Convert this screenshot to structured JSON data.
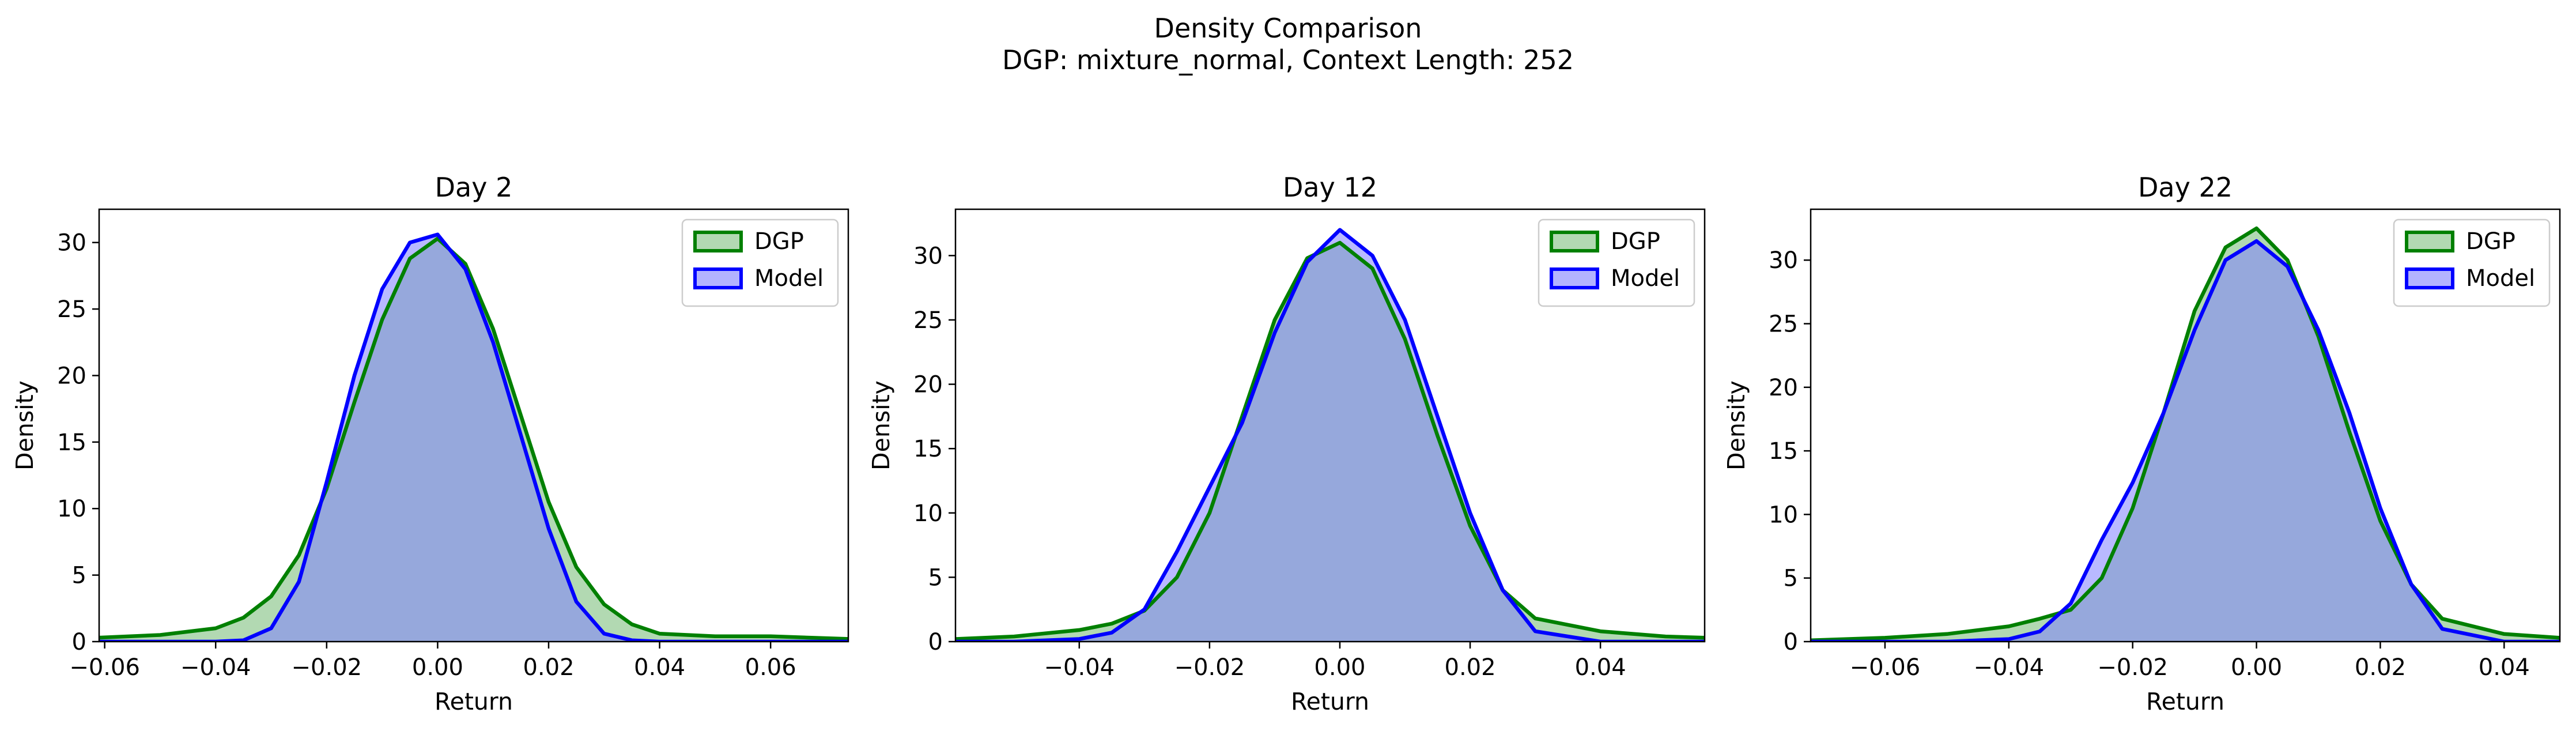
{
  "figure": {
    "title": "Density Comparison",
    "subtitle": "DGP: mixture_normal, Context Length: 252"
  },
  "colors": {
    "dgp_line": "#008000",
    "dgp_fill": "#7fbf7f",
    "model_line": "#0000ff",
    "model_fill": "#8080ff",
    "overlap_fill": "#7f97c7"
  },
  "chart_data": [
    {
      "type": "area",
      "title": "Day 2",
      "xlabel": "Return",
      "ylabel": "Density",
      "xlim": [
        -0.061,
        0.074
      ],
      "ylim": [
        0,
        32.5
      ],
      "xticks": [
        -0.06,
        -0.04,
        -0.02,
        0.0,
        0.02,
        0.04,
        0.06
      ],
      "xtick_labels": [
        "−0.06",
        "−0.04",
        "−0.02",
        "0.00",
        "0.02",
        "0.04",
        "0.06"
      ],
      "yticks": [
        0,
        5,
        10,
        15,
        20,
        25,
        30
      ],
      "ytick_labels": [
        "0",
        "5",
        "10",
        "15",
        "20",
        "25",
        "30"
      ],
      "legend": "top-right",
      "x": [
        -0.061,
        -0.05,
        -0.04,
        -0.035,
        -0.03,
        -0.025,
        -0.02,
        -0.015,
        -0.01,
        -0.005,
        0.0,
        0.005,
        0.01,
        0.015,
        0.02,
        0.025,
        0.03,
        0.035,
        0.04,
        0.05,
        0.06,
        0.074
      ],
      "series": [
        {
          "name": "DGP",
          "values": [
            0.3,
            0.5,
            1.0,
            1.8,
            3.4,
            6.5,
            11.5,
            18.0,
            24.2,
            28.8,
            30.3,
            28.4,
            23.5,
            17.0,
            10.5,
            5.6,
            2.8,
            1.3,
            0.6,
            0.4,
            0.4,
            0.2
          ]
        },
        {
          "name": "Model",
          "values": [
            0.0,
            0.0,
            0.0,
            0.1,
            1.0,
            4.5,
            12.0,
            20.0,
            26.5,
            30.0,
            30.6,
            28.0,
            22.5,
            15.5,
            8.5,
            3.0,
            0.6,
            0.1,
            0.0,
            0.0,
            0.0,
            0.0
          ]
        }
      ]
    },
    {
      "type": "area",
      "title": "Day 12",
      "xlabel": "Return",
      "ylabel": "Density",
      "xlim": [
        -0.059,
        0.056
      ],
      "ylim": [
        0,
        33.6
      ],
      "xticks": [
        -0.04,
        -0.02,
        0.0,
        0.02,
        0.04
      ],
      "xtick_labels": [
        "−0.04",
        "−0.02",
        "0.00",
        "0.02",
        "0.04"
      ],
      "yticks": [
        0,
        5,
        10,
        15,
        20,
        25,
        30
      ],
      "ytick_labels": [
        "0",
        "5",
        "10",
        "15",
        "20",
        "25",
        "30"
      ],
      "legend": "top-right",
      "x": [
        -0.059,
        -0.05,
        -0.04,
        -0.035,
        -0.03,
        -0.025,
        -0.02,
        -0.015,
        -0.01,
        -0.005,
        0.0,
        0.005,
        0.01,
        0.015,
        0.02,
        0.025,
        0.03,
        0.04,
        0.05,
        0.056
      ],
      "series": [
        {
          "name": "DGP",
          "values": [
            0.2,
            0.4,
            0.9,
            1.4,
            2.4,
            5.0,
            10.0,
            17.5,
            25.0,
            29.8,
            31.0,
            29.0,
            23.5,
            16.0,
            9.0,
            4.0,
            1.8,
            0.8,
            0.4,
            0.3
          ]
        },
        {
          "name": "Model",
          "values": [
            0.0,
            0.0,
            0.2,
            0.7,
            2.5,
            7.0,
            12.0,
            17.0,
            24.0,
            29.5,
            32.0,
            30.0,
            25.0,
            17.5,
            10.0,
            4.0,
            0.8,
            0.0,
            0.0,
            0.0
          ]
        }
      ]
    },
    {
      "type": "area",
      "title": "Day 22",
      "xlabel": "Return",
      "ylabel": "Density",
      "xlim": [
        -0.072,
        0.049
      ],
      "ylim": [
        0,
        34.0
      ],
      "xticks": [
        -0.06,
        -0.04,
        -0.02,
        0.0,
        0.02,
        0.04
      ],
      "xtick_labels": [
        "−0.06",
        "−0.04",
        "−0.02",
        "0.00",
        "0.02",
        "0.04"
      ],
      "yticks": [
        0,
        5,
        10,
        15,
        20,
        25,
        30
      ],
      "ytick_labels": [
        "0",
        "5",
        "10",
        "15",
        "20",
        "25",
        "30"
      ],
      "legend": "top-right",
      "x": [
        -0.072,
        -0.06,
        -0.05,
        -0.04,
        -0.035,
        -0.03,
        -0.025,
        -0.02,
        -0.015,
        -0.01,
        -0.005,
        0.0,
        0.005,
        0.01,
        0.015,
        0.02,
        0.025,
        0.03,
        0.04,
        0.049
      ],
      "series": [
        {
          "name": "DGP",
          "values": [
            0.1,
            0.3,
            0.6,
            1.2,
            1.8,
            2.5,
            5.0,
            10.5,
            18.0,
            26.0,
            31.0,
            32.5,
            30.0,
            24.0,
            16.5,
            9.5,
            4.5,
            1.8,
            0.6,
            0.3
          ]
        },
        {
          "name": "Model",
          "values": [
            0.0,
            0.0,
            0.0,
            0.2,
            0.8,
            3.0,
            8.0,
            12.5,
            18.0,
            24.5,
            30.0,
            31.5,
            29.5,
            24.5,
            18.0,
            10.5,
            4.5,
            1.0,
            0.0,
            0.0
          ]
        }
      ]
    }
  ]
}
